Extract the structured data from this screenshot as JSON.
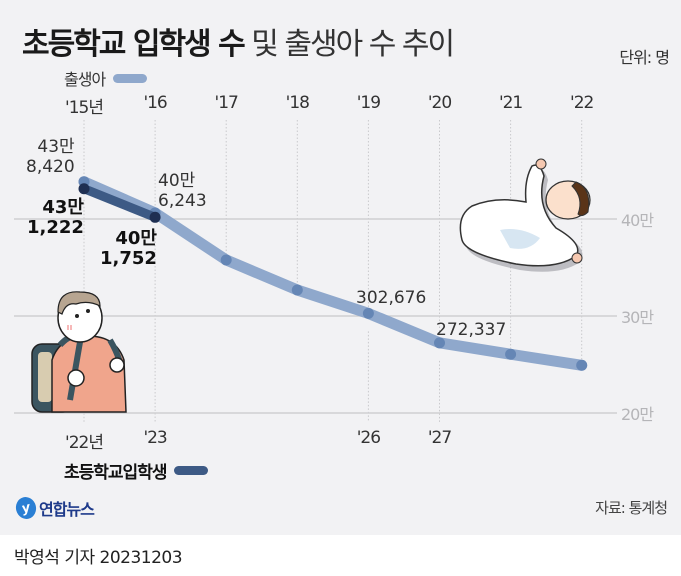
{
  "title": {
    "bold": "초등학교 입학생 수",
    "light": " 및 출생아 수 추이"
  },
  "unit": "단위: 명",
  "legend": {
    "births": {
      "label": "출생아",
      "color": "#8fa8cc"
    },
    "entrants": {
      "label": "초등학교입학생",
      "color": "#3d5a85"
    }
  },
  "source": "자료: 통계청",
  "logo": {
    "mark": "y",
    "name": "연합뉴스"
  },
  "byline": "박영석 기자  20231203",
  "chart_data": {
    "type": "line",
    "title": "초등학교 입학생 수 및 출생아 수 추이",
    "unit": "명",
    "ylabel": "",
    "ylim": [
      200000,
      440000
    ],
    "yticks": [
      {
        "label": "40만",
        "value": 400000
      },
      {
        "label": "30만",
        "value": 300000
      },
      {
        "label": "20만",
        "value": 200000
      }
    ],
    "grid": true,
    "legend_position": "top-left (births), bottom-left (entrants)",
    "top_axis_labels": [
      "'15년",
      "'16",
      "'17",
      "'18",
      "'19",
      "'20",
      "'21",
      "'22"
    ],
    "bottom_axis_labels": [
      {
        "label": "'22년",
        "index": 0
      },
      {
        "label": "'23",
        "index": 1
      },
      {
        "label": "'26",
        "index": 4
      },
      {
        "label": "'27",
        "index": 5
      }
    ],
    "series": [
      {
        "name": "출생아",
        "x": [
          "2015",
          "2016",
          "2017",
          "2018",
          "2019",
          "2020",
          "2021",
          "2022"
        ],
        "values": [
          438420,
          406243,
          357771,
          326822,
          302676,
          272337,
          260562,
          249186
        ],
        "labels": [
          {
            "index": 0,
            "line1": "43만",
            "line2": "8,420"
          },
          {
            "index": 1,
            "line1": "40만",
            "line2": "6,243"
          },
          {
            "index": 4,
            "line1": "302,676"
          },
          {
            "index": 5,
            "line1": "272,337"
          }
        ]
      },
      {
        "name": "초등학교입학생",
        "x": [
          "2022",
          "2023"
        ],
        "values": [
          431222,
          401752
        ],
        "labels": [
          {
            "index": 0,
            "line1": "43만",
            "line2": "1,222"
          },
          {
            "index": 1,
            "line1": "40만",
            "line2": "1,752"
          }
        ]
      }
    ]
  }
}
